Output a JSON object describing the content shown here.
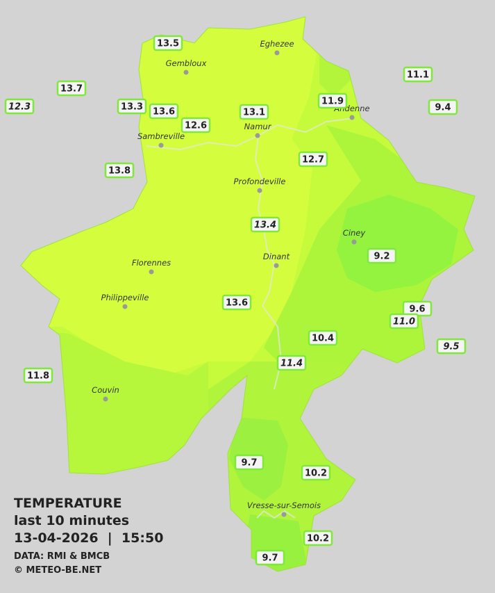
{
  "legend": {
    "title": "TEMPERATURE",
    "subtitle": "last 10 minutes",
    "datetime": "13-04-2026  |  15:50",
    "source": "DATA: RMI & BMCB",
    "credit": "© METEO-BE.NET"
  },
  "cities": [
    "Eghezee",
    "Gembloux",
    "Andenne",
    "Namur",
    "Sambreville",
    "Profondeville",
    "Ciney",
    "Dinant",
    "Florennes",
    "Philippeville",
    "Couvin",
    "Vresse-sur-Semois"
  ],
  "readings": [
    "13.5",
    "13.7",
    "12.3",
    "13.3",
    "13.6",
    "12.6",
    "13.1",
    "11.9",
    "11.1",
    "9.4",
    "13.8",
    "12.7",
    "13.4",
    "9.2",
    "13.6",
    "9.6",
    "11.0",
    "9.5",
    "10.4",
    "11.4",
    "11.8",
    "9.7",
    "10.2",
    "10.2",
    "9.7"
  ]
}
